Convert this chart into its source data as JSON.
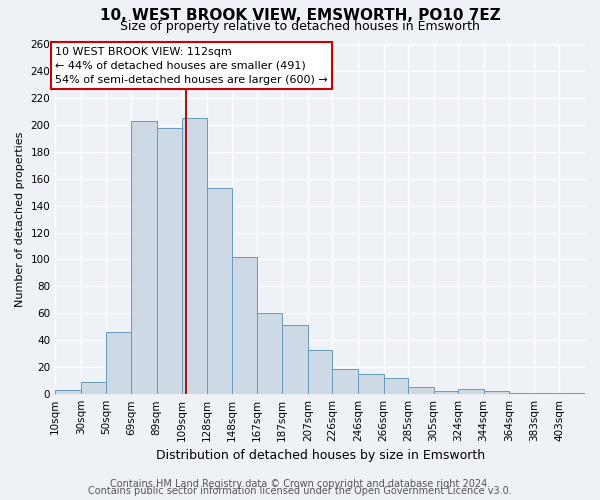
{
  "title": "10, WEST BROOK VIEW, EMSWORTH, PO10 7EZ",
  "subtitle": "Size of property relative to detached houses in Emsworth",
  "xlabel": "Distribution of detached houses by size in Emsworth",
  "ylabel": "Number of detached properties",
  "bar_color": "#cdd9e5",
  "bar_edge_color": "#6699bb",
  "bar_heights": [
    3,
    9,
    46,
    203,
    198,
    205,
    153,
    102,
    60,
    51,
    33,
    19,
    15,
    12,
    5,
    2,
    4,
    2,
    1,
    1,
    1
  ],
  "bin_labels": [
    "10sqm",
    "30sqm",
    "50sqm",
    "69sqm",
    "89sqm",
    "109sqm",
    "128sqm",
    "148sqm",
    "167sqm",
    "187sqm",
    "207sqm",
    "226sqm",
    "246sqm",
    "266sqm",
    "285sqm",
    "305sqm",
    "324sqm",
    "344sqm",
    "364sqm",
    "383sqm",
    "403sqm"
  ],
  "bin_edges": [
    10,
    30,
    50,
    69,
    89,
    109,
    128,
    148,
    167,
    187,
    207,
    226,
    246,
    266,
    285,
    305,
    324,
    344,
    364,
    383,
    403,
    423
  ],
  "property_size": 112,
  "vline_color": "#aa0000",
  "annotation_title": "10 WEST BROOK VIEW: 112sqm",
  "annotation_line1": "← 44% of detached houses are smaller (491)",
  "annotation_line2": "54% of semi-detached houses are larger (600) →",
  "annotation_box_color": "#ffffff",
  "annotation_box_edge": "#cc0000",
  "ylim": [
    0,
    260
  ],
  "yticks": [
    0,
    20,
    40,
    60,
    80,
    100,
    120,
    140,
    160,
    180,
    200,
    220,
    240,
    260
  ],
  "footer1": "Contains HM Land Registry data © Crown copyright and database right 2024.",
  "footer2": "Contains public sector information licensed under the Open Government Licence v3.0.",
  "background_color": "#eef2f6",
  "grid_color": "#ffffff",
  "title_fontsize": 11,
  "subtitle_fontsize": 9,
  "ylabel_fontsize": 8,
  "xlabel_fontsize": 9,
  "tick_fontsize": 7.5,
  "footer_fontsize": 7
}
